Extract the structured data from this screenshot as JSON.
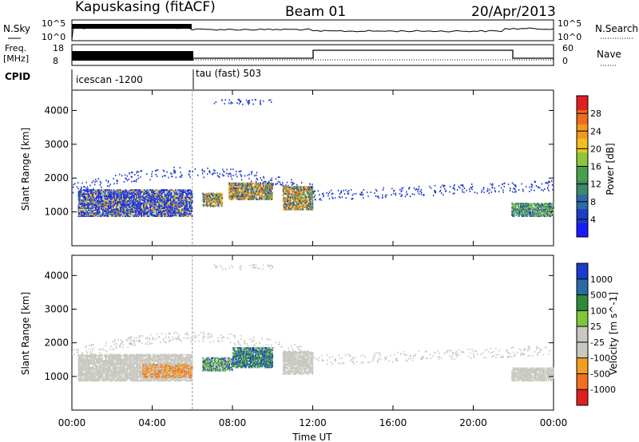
{
  "header": {
    "station": "Kapuskasing (fitACF)",
    "beam": "Beam 01",
    "date": "20/Apr/2013"
  },
  "strip_panels": {
    "nsky_label": "N.Sky",
    "nsearch_label": "N.Search",
    "nsky_ticks": [
      "10^5",
      "10^0"
    ],
    "nsearch_ticks": [
      "10^5",
      "10^0"
    ],
    "freq_label_1": "Freq.",
    "freq_label_2": "[MHz]",
    "freq_ticks": [
      "18",
      "8"
    ],
    "nave_label": "Nave",
    "nave_ticks": [
      "60",
      "0"
    ],
    "cpid_label": "CPID",
    "cpid_segments": [
      {
        "label": "icescan -1200",
        "start_hour": 0,
        "end_hour": 6
      },
      {
        "label": "tau (fast) 503",
        "start_hour": 6,
        "end_hour": 24
      }
    ]
  },
  "chart_data": [
    {
      "type": "heatmap",
      "name": "power-panel",
      "ylabel": "Slant Range [km]",
      "xlabel": "",
      "x_ticks": [
        "00:00",
        "04:00",
        "08:00",
        "12:00",
        "16:00",
        "20:00",
        "00:00"
      ],
      "xlim_hours": [
        0,
        24
      ],
      "ylim": [
        0,
        4600
      ],
      "y_ticks": [
        1000,
        2000,
        3000,
        4000
      ],
      "colorbar": {
        "label": "Power [dB]",
        "ticks": [
          "4",
          "8",
          "12",
          "16",
          "20",
          "24",
          "28"
        ],
        "colors": [
          "#1a1aff",
          "#1e3cc8",
          "#2a6aa6",
          "#3b8a6a",
          "#4aa04a",
          "#8cc63a",
          "#f0c020",
          "#f09a20",
          "#f06a20",
          "#e02020"
        ]
      },
      "echo_regions_hours_km": [
        {
          "x": [
            0.3,
            6.0
          ],
          "y": [
            900,
            1700
          ],
          "level": "low-mid"
        },
        {
          "x": [
            6.5,
            7.5
          ],
          "y": [
            1200,
            1600
          ],
          "level": "high"
        },
        {
          "x": [
            7.8,
            10.0
          ],
          "y": [
            1400,
            1900
          ],
          "level": "high"
        },
        {
          "x": [
            10.5,
            12.0
          ],
          "y": [
            1100,
            1800
          ],
          "level": "high"
        },
        {
          "x": [
            21.9,
            24.0
          ],
          "y": [
            900,
            1300
          ],
          "level": "mid"
        }
      ]
    },
    {
      "type": "heatmap",
      "name": "velocity-panel",
      "ylabel": "Slant Range [km]",
      "xlabel": "Time UT",
      "x_ticks": [
        "00:00",
        "04:00",
        "08:00",
        "12:00",
        "16:00",
        "20:00",
        "00:00"
      ],
      "xlim_hours": [
        0,
        24
      ],
      "ylim": [
        0,
        4600
      ],
      "y_ticks": [
        1000,
        2000,
        3000,
        4000
      ],
      "colorbar": {
        "label": "Velocity [m s^-1]",
        "ticks": [
          "1000",
          "500",
          "100",
          "25",
          "-25",
          "-100",
          "-500",
          "-1000"
        ],
        "colors": [
          "#1a3cc8",
          "#2a6aa6",
          "#2e8a3a",
          "#7cc83a",
          "#c8c8c0",
          "#c8c8c0",
          "#f0a020",
          "#f07020",
          "#e02020"
        ]
      },
      "echo_regions_hours_km": [
        {
          "x": [
            0.3,
            6.0
          ],
          "y": [
            900,
            1700
          ],
          "level": "ground"
        },
        {
          "x": [
            3.5,
            6.0
          ],
          "y": [
            1000,
            1400
          ],
          "level": "negative"
        },
        {
          "x": [
            6.5,
            8.0
          ],
          "y": [
            1200,
            1600
          ],
          "level": "positive"
        },
        {
          "x": [
            8.0,
            10.0
          ],
          "y": [
            1300,
            1900
          ],
          "level": "positive-strong"
        },
        {
          "x": [
            10.5,
            12.0
          ],
          "y": [
            1100,
            1800
          ],
          "level": "ground"
        },
        {
          "x": [
            21.9,
            24.0
          ],
          "y": [
            900,
            1300
          ],
          "level": "ground"
        }
      ]
    }
  ]
}
